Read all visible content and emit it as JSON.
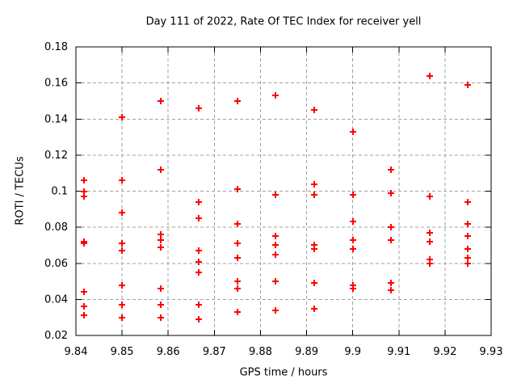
{
  "title": "Day 111 of 2022, Rate Of TEC Index for receiver yell",
  "chart_data": {
    "type": "scatter",
    "title": "Day 111 of 2022, Rate Of TEC Index for receiver yell",
    "xlabel": "GPS time / hours",
    "ylabel": "ROTI / TECUs",
    "xlim": [
      9.84,
      9.93
    ],
    "ylim": [
      0.02,
      0.18
    ],
    "xtick_values": [
      9.84,
      9.85,
      9.86,
      9.87,
      9.88,
      9.89,
      9.9,
      9.91,
      9.92,
      9.93
    ],
    "xtick_labels": [
      "9.84",
      "9.85",
      "9.86",
      "9.87",
      "9.88",
      "9.89",
      "9.9",
      "9.91",
      "9.92",
      "9.93"
    ],
    "ytick_values": [
      0.02,
      0.04,
      0.06,
      0.08,
      0.1,
      0.12,
      0.14,
      0.16,
      0.18
    ],
    "ytick_labels": [
      "0.02",
      "0.04",
      "0.06",
      "0.08",
      "0.1",
      "0.12",
      "0.14",
      "0.16",
      "0.18"
    ],
    "grid": true,
    "legend": "none",
    "marker_shape": "plus",
    "colors": {
      "marker": "#ff0000",
      "grid": "#a0a0a0",
      "axis": "#000000",
      "text": "#000000",
      "background": "#ffffff"
    },
    "series": [
      {
        "name": "ROTI",
        "points": [
          [
            9.8417,
            0.106
          ],
          [
            9.8417,
            0.1
          ],
          [
            9.8417,
            0.097
          ],
          [
            9.8417,
            0.072
          ],
          [
            9.8417,
            0.071
          ],
          [
            9.8417,
            0.044
          ],
          [
            9.8417,
            0.036
          ],
          [
            9.8417,
            0.031
          ],
          [
            9.85,
            0.141
          ],
          [
            9.85,
            0.106
          ],
          [
            9.85,
            0.088
          ],
          [
            9.85,
            0.071
          ],
          [
            9.85,
            0.067
          ],
          [
            9.85,
            0.048
          ],
          [
            9.85,
            0.037
          ],
          [
            9.85,
            0.03
          ],
          [
            9.8583,
            0.15
          ],
          [
            9.8583,
            0.112
          ],
          [
            9.8583,
            0.076
          ],
          [
            9.8583,
            0.073
          ],
          [
            9.8583,
            0.069
          ],
          [
            9.8583,
            0.046
          ],
          [
            9.8583,
            0.037
          ],
          [
            9.8583,
            0.03
          ],
          [
            9.8667,
            0.146
          ],
          [
            9.8667,
            0.094
          ],
          [
            9.8667,
            0.085
          ],
          [
            9.8667,
            0.067
          ],
          [
            9.8667,
            0.061
          ],
          [
            9.8667,
            0.055
          ],
          [
            9.8667,
            0.037
          ],
          [
            9.8667,
            0.029
          ],
          [
            9.875,
            0.15
          ],
          [
            9.875,
            0.101
          ],
          [
            9.875,
            0.082
          ],
          [
            9.875,
            0.071
          ],
          [
            9.875,
            0.063
          ],
          [
            9.875,
            0.05
          ],
          [
            9.875,
            0.046
          ],
          [
            9.875,
            0.033
          ],
          [
            9.8833,
            0.153
          ],
          [
            9.8833,
            0.098
          ],
          [
            9.8833,
            0.075
          ],
          [
            9.8833,
            0.07
          ],
          [
            9.8833,
            0.065
          ],
          [
            9.8833,
            0.05
          ],
          [
            9.8833,
            0.034
          ],
          [
            9.8917,
            0.145
          ],
          [
            9.8917,
            0.104
          ],
          [
            9.8917,
            0.098
          ],
          [
            9.8917,
            0.07
          ],
          [
            9.8917,
            0.068
          ],
          [
            9.8917,
            0.049
          ],
          [
            9.8917,
            0.035
          ],
          [
            9.9,
            0.133
          ],
          [
            9.9,
            0.098
          ],
          [
            9.9,
            0.083
          ],
          [
            9.9,
            0.073
          ],
          [
            9.9,
            0.068
          ],
          [
            9.9,
            0.048
          ],
          [
            9.9,
            0.046
          ],
          [
            9.9083,
            0.112
          ],
          [
            9.9083,
            0.099
          ],
          [
            9.9083,
            0.08
          ],
          [
            9.9083,
            0.073
          ],
          [
            9.9083,
            0.049
          ],
          [
            9.9083,
            0.045
          ],
          [
            9.9167,
            0.164
          ],
          [
            9.9167,
            0.097
          ],
          [
            9.9167,
            0.077
          ],
          [
            9.9167,
            0.072
          ],
          [
            9.9167,
            0.062
          ],
          [
            9.9167,
            0.06
          ],
          [
            9.925,
            0.159
          ],
          [
            9.925,
            0.094
          ],
          [
            9.925,
            0.082
          ],
          [
            9.925,
            0.075
          ],
          [
            9.925,
            0.068
          ],
          [
            9.925,
            0.063
          ],
          [
            9.925,
            0.06
          ]
        ]
      }
    ]
  }
}
